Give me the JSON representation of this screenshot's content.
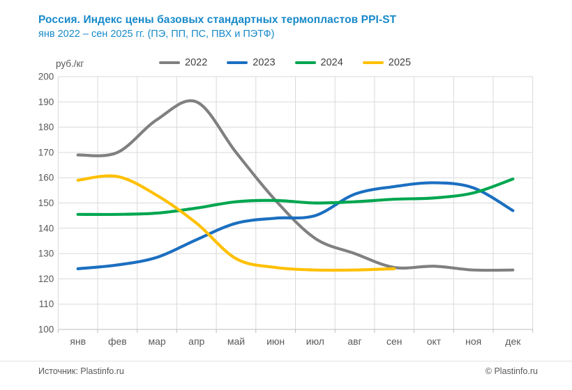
{
  "header": {
    "title": "Россия. Индекс цены базовых стандартных термопластов PPI-ST",
    "subtitle": "янв 2022 – сен 2025 гг. (ПЭ, ПП, ПС, ПВХ и ПЭТФ)"
  },
  "chart_data": {
    "type": "line",
    "title": "Россия. Индекс цены базовых стандартных термопластов PPI-ST",
    "subtitle": "янв 2022 – сен 2025 гг. (ПЭ, ПП, ПС, ПВХ и ПЭТФ)",
    "ylabel": "руб./кг",
    "xlabel": "",
    "categories": [
      "янв",
      "фев",
      "мар",
      "апр",
      "май",
      "июн",
      "июл",
      "авг",
      "сен",
      "окт",
      "ноя",
      "дек"
    ],
    "series": [
      {
        "name": "2022",
        "color": "#808080",
        "values": [
          169,
          170,
          183,
          190,
          170,
          151,
          136,
          130,
          124.5,
          125,
          123.5,
          123.5
        ]
      },
      {
        "name": "2023",
        "color": "#1B6FC0",
        "values": [
          124,
          125.5,
          128.5,
          135.5,
          142,
          144,
          145,
          153.5,
          156.5,
          158,
          156,
          147
        ]
      },
      {
        "name": "2024",
        "color": "#00A650",
        "values": [
          145.5,
          145.5,
          146,
          148,
          150.5,
          151,
          150,
          150.5,
          151.5,
          152,
          154,
          159.5
        ]
      },
      {
        "name": "2025",
        "color": "#FFC000",
        "values": [
          159,
          160.5,
          153,
          142,
          128,
          124.5,
          123.5,
          123.5,
          124
        ]
      }
    ],
    "ylim": [
      100,
      200
    ],
    "ytick_step": 10,
    "grid": true,
    "legend_position": "top"
  },
  "footer": {
    "source": "Источник: Plastinfo.ru",
    "copyright": "© Plastinfo.ru"
  },
  "colors": {
    "title_text": "#1789C9",
    "axis_text": "#595959",
    "grid_line": "#D9D9D9",
    "axis_line": "#BFBFBF"
  }
}
